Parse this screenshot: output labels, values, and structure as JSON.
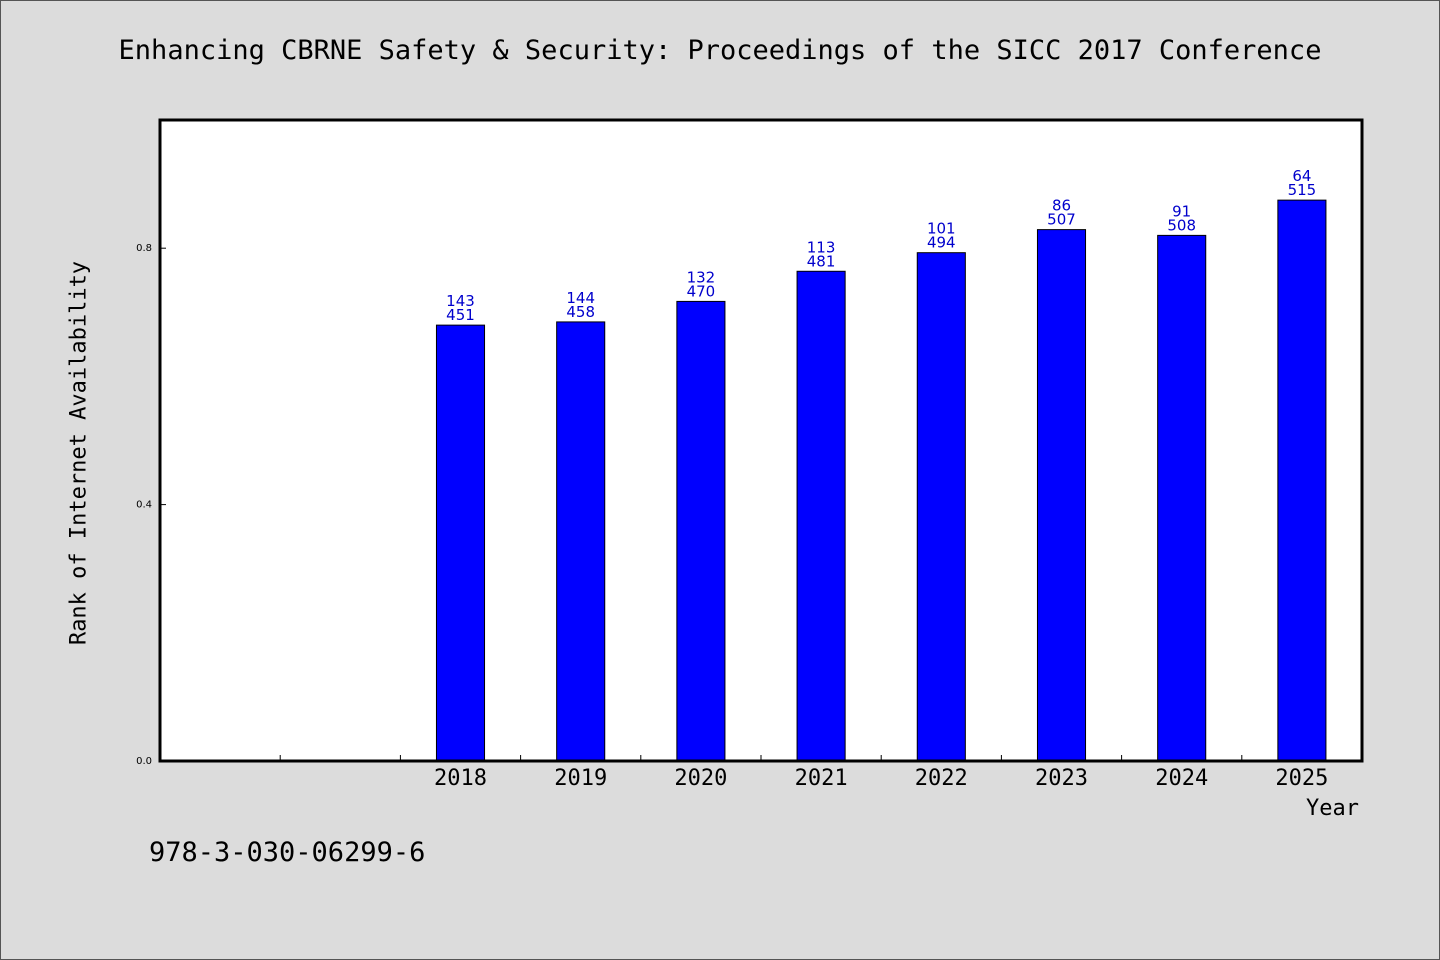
{
  "title": "Enhancing CBRNE Safety & Security: Proceedings of the SICC 2017 Conference",
  "footer_text": "978-3-030-06299-6",
  "colors": {
    "bar": "#0000ff",
    "label": "#0000cc",
    "background": "#dcdcdc",
    "plot": "#ffffff"
  },
  "chart_data": {
    "type": "bar",
    "title": "Enhancing CBRNE Safety & Security: Proceedings of the SICC 2017 Conference",
    "xlabel": "Year",
    "ylabel": "Rank of Internet Availability",
    "ylim": [
      0,
      1.0
    ],
    "yticks": [
      "0.0",
      "0.4",
      "0.8"
    ],
    "grid": false,
    "categories": [
      "",
      "",
      "2018",
      "2019",
      "2020",
      "2021",
      "2022",
      "2023",
      "2024",
      "2025"
    ],
    "values": [
      null,
      null,
      0.68,
      0.685,
      0.717,
      0.764,
      0.793,
      0.829,
      0.82,
      0.875
    ],
    "label_top": [
      null,
      null,
      "143",
      "144",
      "132",
      "113",
      "101",
      "86",
      "91",
      "64"
    ],
    "label_bottom": [
      null,
      null,
      "451",
      "458",
      "470",
      "481",
      "494",
      "507",
      "508",
      "515"
    ]
  }
}
